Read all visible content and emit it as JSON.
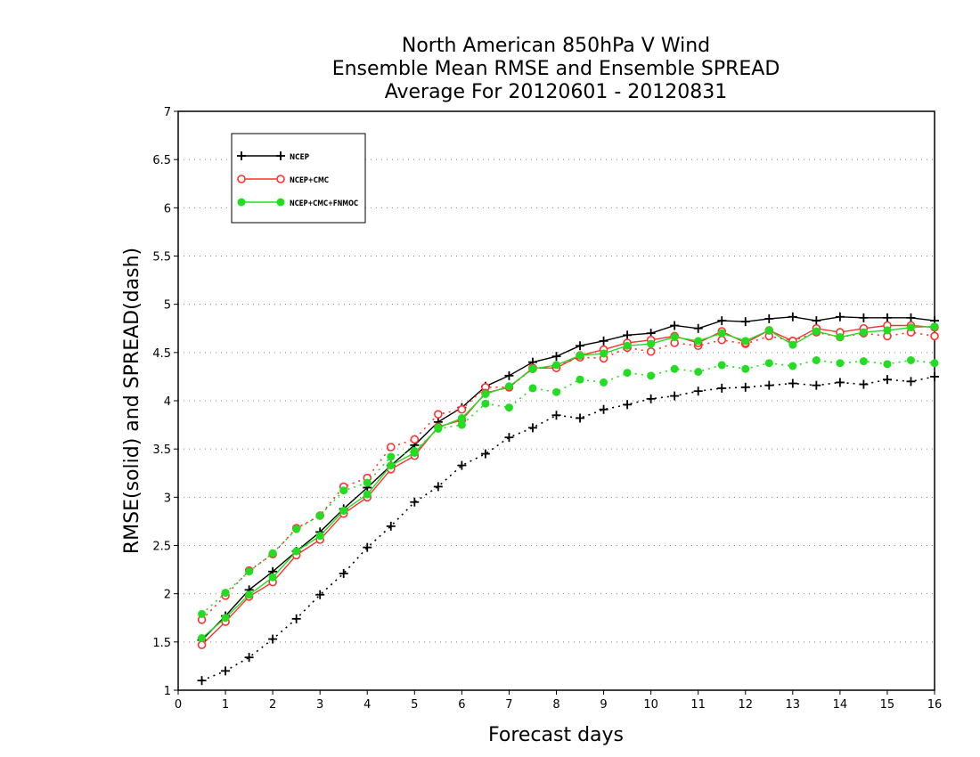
{
  "chart_data": {
    "type": "line",
    "title": [
      "North American 850hPa V Wind",
      "Ensemble Mean RMSE and Ensemble SPREAD",
      "Average For 20120601 - 20120831"
    ],
    "xlabel": "Forecast days",
    "ylabel": "RMSE(solid) and SPREAD(dash)",
    "xlim": [
      0,
      16
    ],
    "ylim": [
      1,
      7
    ],
    "xticks": [
      "0",
      "1",
      "2",
      "3",
      "4",
      "5",
      "6",
      "7",
      "8",
      "9",
      "10",
      "11",
      "12",
      "13",
      "14",
      "15",
      "16"
    ],
    "yticks": [
      "1",
      "1.5",
      "2",
      "2.5",
      "3",
      "3.5",
      "4",
      "4.5",
      "5",
      "5.5",
      "6",
      "6.5",
      "7"
    ],
    "grid": true,
    "legend_position": "top-left",
    "x": [
      0.5,
      1,
      1.5,
      2,
      2.5,
      3,
      3.5,
      4,
      4.5,
      5,
      5.5,
      6,
      6.5,
      7,
      7.5,
      8,
      8.5,
      9,
      9.5,
      10,
      10.5,
      11,
      11.5,
      12,
      12.5,
      13,
      13.5,
      14,
      14.5,
      15,
      15.5,
      16
    ],
    "series": [
      {
        "name": "NCEP",
        "color": "#000000",
        "marker": "plus",
        "rmse": [
          1.52,
          1.77,
          2.04,
          2.23,
          2.44,
          2.64,
          2.88,
          3.1,
          3.33,
          3.54,
          3.78,
          3.93,
          4.15,
          4.26,
          4.4,
          4.46,
          4.57,
          4.62,
          4.68,
          4.7,
          4.78,
          4.75,
          4.83,
          4.82,
          4.85,
          4.87,
          4.83,
          4.87,
          4.86,
          4.86,
          4.86,
          4.83
        ],
        "spread": [
          1.1,
          1.2,
          1.34,
          1.53,
          1.74,
          1.99,
          2.21,
          2.48,
          2.7,
          2.95,
          3.11,
          3.33,
          3.45,
          3.62,
          3.72,
          3.85,
          3.82,
          3.91,
          3.96,
          4.02,
          4.05,
          4.1,
          4.13,
          4.14,
          4.16,
          4.18,
          4.16,
          4.19,
          4.17,
          4.22,
          4.2,
          4.25
        ]
      },
      {
        "name": "NCEP+CMC",
        "color": "#ff3030",
        "marker": "circle",
        "rmse": [
          1.47,
          1.71,
          1.97,
          2.12,
          2.4,
          2.56,
          2.83,
          3.0,
          3.29,
          3.43,
          3.73,
          3.8,
          4.08,
          4.14,
          4.34,
          4.34,
          4.47,
          4.53,
          4.6,
          4.63,
          4.67,
          4.6,
          4.72,
          4.6,
          4.73,
          4.62,
          4.75,
          4.71,
          4.75,
          4.78,
          4.78,
          4.76
        ],
        "spread": [
          1.73,
          1.98,
          2.24,
          2.41,
          2.68,
          2.81,
          3.11,
          3.2,
          3.52,
          3.6,
          3.86,
          3.91,
          4.14,
          4.14,
          4.33,
          4.36,
          4.45,
          4.44,
          4.55,
          4.51,
          4.6,
          4.57,
          4.63,
          4.59,
          4.67,
          4.62,
          4.71,
          4.66,
          4.7,
          4.67,
          4.71,
          4.67
        ]
      },
      {
        "name": "NCEP+CMC+FNMOC",
        "color": "#22dd22",
        "marker": "dot",
        "rmse": [
          1.54,
          1.75,
          1.99,
          2.17,
          2.44,
          2.6,
          2.86,
          3.03,
          3.33,
          3.46,
          3.72,
          3.82,
          4.07,
          4.15,
          4.33,
          4.37,
          4.47,
          4.49,
          4.57,
          4.59,
          4.66,
          4.62,
          4.7,
          4.62,
          4.73,
          4.58,
          4.72,
          4.66,
          4.71,
          4.73,
          4.76,
          4.77
        ],
        "spread": [
          1.79,
          2.01,
          2.23,
          2.42,
          2.67,
          2.81,
          3.07,
          3.15,
          3.42,
          3.48,
          3.71,
          3.75,
          3.97,
          3.93,
          4.13,
          4.09,
          4.22,
          4.19,
          4.29,
          4.26,
          4.33,
          4.3,
          4.37,
          4.33,
          4.39,
          4.36,
          4.42,
          4.39,
          4.41,
          4.38,
          4.42,
          4.39
        ]
      }
    ]
  }
}
